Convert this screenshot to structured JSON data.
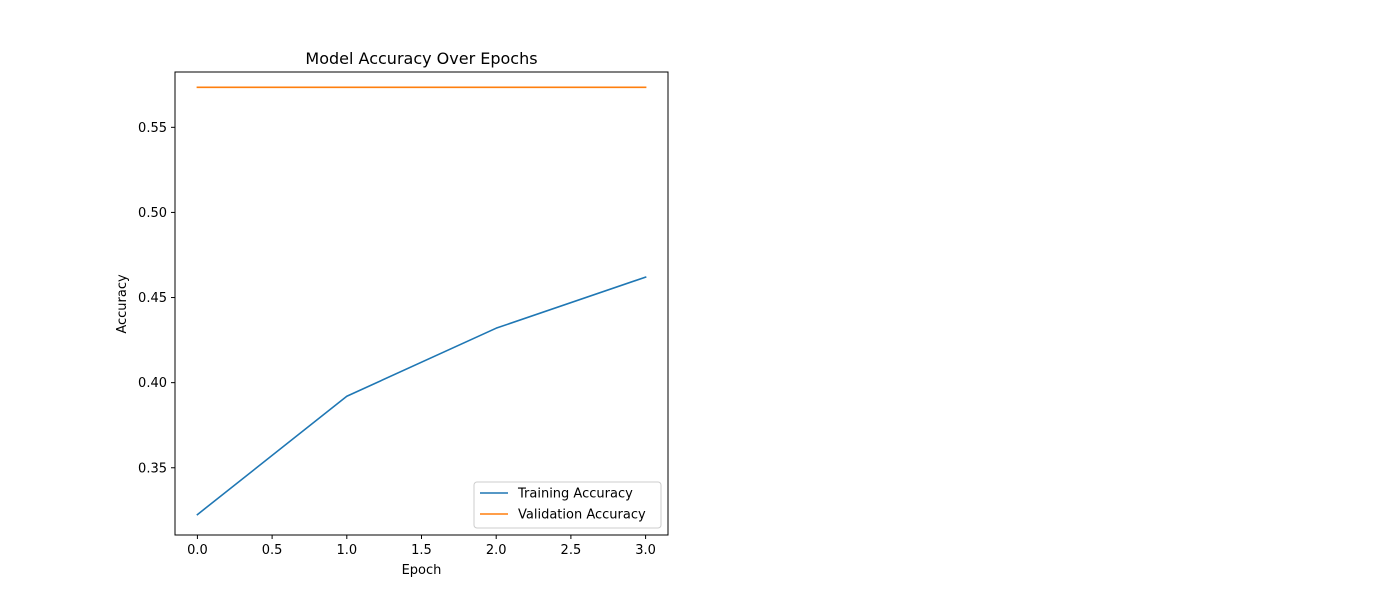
{
  "chart_data": {
    "type": "line",
    "title": "Model Accuracy Over Epochs",
    "xlabel": "Epoch",
    "ylabel": "Accuracy",
    "xlim": [
      -0.15,
      3.15
    ],
    "ylim": [
      0.3105,
      0.5825
    ],
    "x_ticks": [
      0.0,
      0.5,
      1.0,
      1.5,
      2.0,
      2.5,
      3.0
    ],
    "x_tick_labels": [
      "0.0",
      "0.5",
      "1.0",
      "1.5",
      "2.0",
      "2.5",
      "3.0"
    ],
    "y_ticks": [
      0.35,
      0.4,
      0.45,
      0.5,
      0.55
    ],
    "y_tick_labels": [
      "0.35",
      "0.40",
      "0.45",
      "0.50",
      "0.55"
    ],
    "x": [
      0,
      1,
      2,
      3
    ],
    "series": [
      {
        "name": "Training Accuracy",
        "color": "#1f77b4",
        "values": [
          0.3225,
          0.392,
          0.432,
          0.462
        ]
      },
      {
        "name": "Validation Accuracy",
        "color": "#ff7f0e",
        "values": [
          0.5735,
          0.5735,
          0.5735,
          0.5735
        ]
      }
    ],
    "legend_position": "lower-right",
    "grid": false
  }
}
